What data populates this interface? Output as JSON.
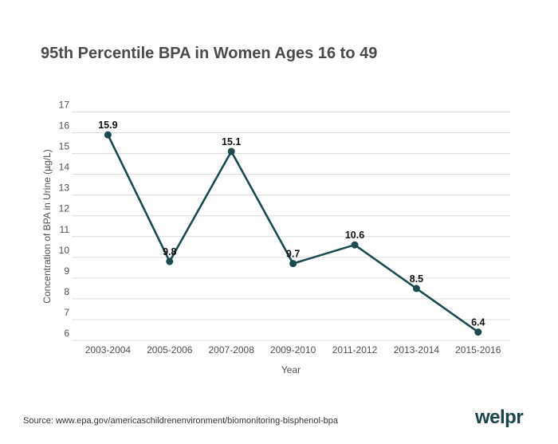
{
  "page": {
    "title": "95th Percentile BPA in Women Ages 16 to 49",
    "source_line": "Source: www.epa.gov/americaschildrenenvironment/biomonitoring-bisphenol-bpa",
    "brand_logo": "welpr"
  },
  "colors": {
    "background": "#ffffff",
    "line": "#1c4a50",
    "point": "#1c4a50",
    "grid": "#dcdcdc",
    "title_text": "#4a4a4a",
    "tick_text": "#4f4f4f",
    "value_label_text": "#111111",
    "source_text": "#333333",
    "logo_text": "#1b4549"
  },
  "chart_data": {
    "type": "line",
    "title": "95th Percentile BPA in Women Ages 16 to 49",
    "categories": [
      "2003-2004",
      "2005-2006",
      "2007-2008",
      "2009-2010",
      "2011-2012",
      "2013-2014",
      "2015-2016"
    ],
    "values": [
      15.9,
      9.8,
      15.1,
      9.7,
      10.6,
      8.5,
      6.4
    ],
    "xlabel": "Year",
    "ylabel": "Concentration of BPA in Urine (µg/L)",
    "ylim": [
      6,
      17
    ],
    "yticks": [
      6,
      7,
      8,
      9,
      10,
      11,
      12,
      13,
      14,
      15,
      16,
      17
    ],
    "grid": "horizontal",
    "legend": "none",
    "point_labels_shown": true
  }
}
